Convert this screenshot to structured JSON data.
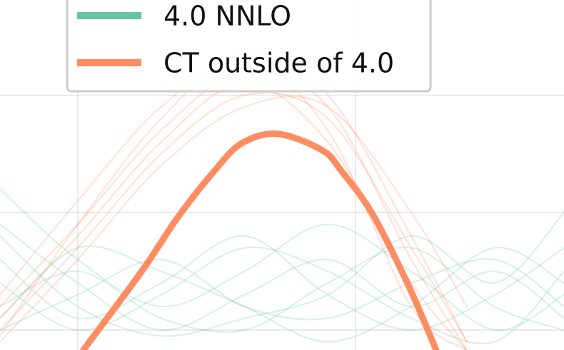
{
  "chart_data": {
    "type": "line",
    "xlim": [
      0.72,
      2.75
    ],
    "ylim": [
      0.83,
      3.81
    ],
    "xticks": [
      1,
      2
    ],
    "yticks": [
      1,
      2,
      3
    ],
    "grid": true,
    "legend": "upper left",
    "series": [
      {
        "name": "4.0 NNLO",
        "color": "#66c2a5",
        "replica_x": [
          0.72,
          1.0,
          1.3,
          1.6,
          1.9,
          2.2,
          2.5,
          2.75
        ],
        "replicas": [
          [
            1.9,
            1.4,
            1.0,
            1.3,
            1.6,
            1.2,
            1.5,
            1.1
          ],
          [
            1.6,
            1.1,
            1.4,
            1.8,
            1.3,
            1.0,
            1.3,
            1.7
          ],
          [
            1.2,
            1.5,
            1.1,
            1.0,
            1.4,
            1.7,
            1.2,
            1.0
          ],
          [
            2.2,
            1.6,
            1.2,
            1.5,
            1.9,
            1.5,
            1.0,
            1.3
          ],
          [
            1.0,
            1.3,
            1.6,
            1.2,
            1.1,
            1.4,
            1.6,
            1.2
          ],
          [
            1.4,
            1.0,
            1.3,
            1.7,
            1.5,
            1.1,
            0.9,
            1.5
          ],
          [
            1.8,
            1.2,
            0.95,
            1.1,
            1.3,
            1.8,
            1.4,
            2.0
          ],
          [
            1.1,
            1.7,
            1.5,
            1.2,
            0.9,
            1.2,
            1.7,
            1.4
          ]
        ]
      },
      {
        "name": "CT outside of 4.0",
        "color": "#fc8d62",
        "x": [
          1.02,
          1.23,
          1.36,
          1.49,
          1.59,
          1.72,
          1.88,
          1.95,
          2.06,
          2.19,
          2.29
        ],
        "values": [
          0.83,
          1.5,
          1.96,
          2.35,
          2.59,
          2.67,
          2.53,
          2.35,
          1.99,
          1.38,
          0.83
        ],
        "replica_x": [
          0.72,
          1.0,
          1.3,
          1.6,
          1.9,
          2.2,
          2.4
        ],
        "replicas": [
          [
            1.2,
            1.9,
            2.7,
            3.2,
            2.9,
            1.6,
            0.83
          ],
          [
            1.0,
            1.7,
            2.5,
            3.0,
            2.8,
            1.7,
            0.9
          ],
          [
            1.3,
            2.1,
            2.9,
            3.3,
            2.7,
            1.2,
            0.83
          ],
          [
            0.9,
            1.6,
            2.4,
            2.9,
            2.9,
            2.0,
            1.2
          ],
          [
            1.1,
            1.8,
            2.6,
            3.1,
            2.6,
            1.4,
            0.83
          ],
          [
            0.95,
            1.9,
            2.8,
            3.35,
            3.0,
            1.8,
            0.9
          ]
        ]
      }
    ]
  }
}
